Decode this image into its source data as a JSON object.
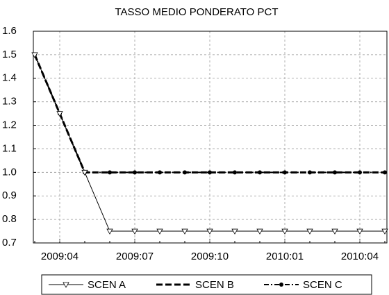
{
  "chart_data": {
    "type": "line",
    "title": "TASSO MEDIO PONDERATO PCT",
    "categories": [
      null,
      "2009:04",
      null,
      null,
      "2009:07",
      null,
      null,
      "2009:10",
      null,
      null,
      "2010:01",
      null,
      null,
      "2010:04",
      null
    ],
    "series": [
      {
        "name": "SCEN A",
        "color": "#000000",
        "style": "solid",
        "marker": "triangle-down",
        "values": [
          1.5,
          1.25,
          1.0,
          0.75,
          0.75,
          0.75,
          0.75,
          0.75,
          0.75,
          0.75,
          0.75,
          0.75,
          0.75,
          0.75,
          0.75
        ]
      },
      {
        "name": "SCEN B",
        "color": "#000000",
        "style": "dashed",
        "marker": "none",
        "values": [
          1.5,
          1.25,
          1.0,
          1.0,
          1.0,
          1.0,
          1.0,
          1.0,
          1.0,
          1.0,
          1.0,
          1.0,
          1.0,
          1.0,
          1.0
        ]
      },
      {
        "name": "SCEN C",
        "color": "#000000",
        "style": "dashdot",
        "marker": "circle",
        "values": [
          1.5,
          1.25,
          1.0,
          1.0,
          1.0,
          1.0,
          1.0,
          1.0,
          1.0,
          1.0,
          1.0,
          1.0,
          1.0,
          1.0,
          1.0
        ]
      }
    ],
    "ylim": [
      0.7,
      1.6
    ],
    "yticks": [
      0.7,
      0.8,
      0.9,
      {
        "value": 1.0,
        "label": "1.0"
      },
      1.1,
      1.2,
      1.3,
      1.4,
      1.5,
      1.6
    ],
    "grid": true,
    "legend": "bottom"
  }
}
